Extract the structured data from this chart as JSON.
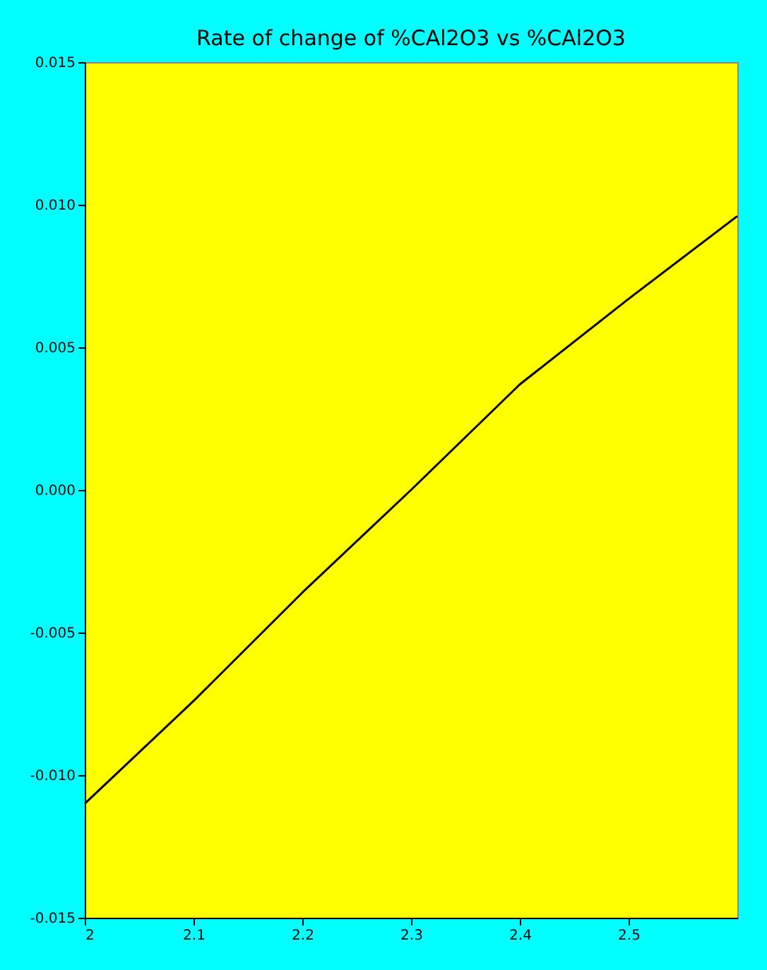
{
  "chart_data": {
    "type": "line",
    "title": "Rate of change of %CAl2O3 vs %CAl2O3",
    "x": [
      2.0,
      2.1,
      2.2,
      2.3,
      2.4,
      2.5,
      2.6
    ],
    "series": [
      {
        "color": "#000000",
        "values": [
          -0.011,
          -0.0074,
          -0.0036,
          0.0,
          0.0037,
          0.0067,
          0.0096
        ]
      }
    ],
    "xlim": [
      2.0,
      2.6
    ],
    "xticks": [
      {
        "value": 2,
        "label": "2"
      },
      2.1,
      2.2,
      2.3,
      2.4,
      2.5
    ],
    "ylim": [
      -0.015,
      0.015
    ],
    "yticks": [
      {
        "value": -0.015,
        "label": "-0.015"
      },
      {
        "value": -0.01,
        "label": "-0.010"
      },
      {
        "value": -0.005,
        "label": "-0.005"
      },
      {
        "value": 0,
        "label": "0.000"
      },
      {
        "value": 0.005,
        "label": "0.005"
      },
      {
        "value": 0.01,
        "label": "0.010"
      },
      {
        "value": 0.015,
        "label": "0.015"
      }
    ],
    "grid": false,
    "marker": "none",
    "line_style": "solid"
  }
}
